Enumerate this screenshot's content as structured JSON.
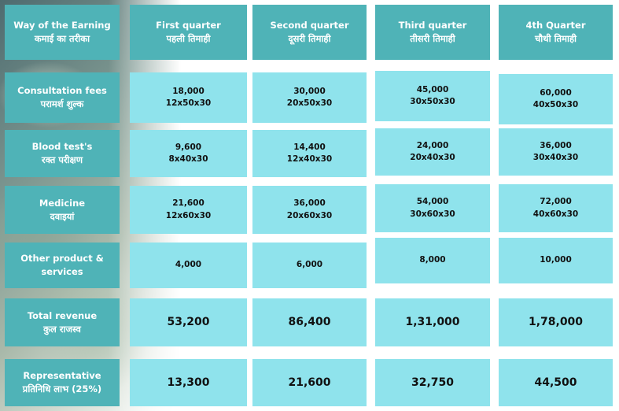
{
  "header": {
    "way": [
      "Way of the Earning",
      "कमाई का तरीका"
    ],
    "q1": [
      "First quarter",
      "पहली तिमाही"
    ],
    "q2": [
      "Second quarter",
      "दूसरी तिमाही"
    ],
    "q3": [
      "Third quarter",
      "तीसरी तिमाही"
    ],
    "q4": [
      "4th Quarter",
      "चौथी तिमाही"
    ]
  },
  "rows": [
    {
      "label": [
        "Consultation fees",
        "परामर्श शुल्क"
      ],
      "cells": [
        [
          "18,000",
          "12x50x30"
        ],
        [
          "30,000",
          "20x50x30"
        ],
        [
          "45,000",
          "30x50x30"
        ],
        [
          "60,000",
          "40x50x30"
        ]
      ]
    },
    {
      "label": [
        "Blood test's",
        "रक्त परीक्षण"
      ],
      "cells": [
        [
          "9,600",
          "8x40x30"
        ],
        [
          "14,400",
          "12x40x30"
        ],
        [
          "24,000",
          "20x40x30"
        ],
        [
          "36,000",
          "30x40x30"
        ]
      ]
    },
    {
      "label": [
        "Medicine",
        "दवाइयां"
      ],
      "cells": [
        [
          "21,600",
          "12x60x30"
        ],
        [
          "36,000",
          "20x60x30"
        ],
        [
          "54,000",
          "30x60x30"
        ],
        [
          "72,000",
          "40x60x30"
        ]
      ]
    },
    {
      "label": [
        "Other product &",
        "services"
      ],
      "cells": [
        [
          "4,000"
        ],
        [
          "6,000"
        ],
        [
          "8,000"
        ],
        [
          "10,000"
        ]
      ]
    },
    {
      "label": [
        "Total revenue",
        "कुल राजस्व"
      ],
      "cells": [
        [
          "53,200"
        ],
        [
          "86,400"
        ],
        [
          "1,31,000"
        ],
        [
          "1,78,000"
        ]
      ]
    },
    {
      "label": [
        "Representative",
        "प्रतिनिधि लाभ (25%)"
      ],
      "cells": [
        [
          "13,300"
        ],
        [
          "21,600"
        ],
        [
          "32,750"
        ],
        [
          "44,500"
        ]
      ]
    }
  ]
}
